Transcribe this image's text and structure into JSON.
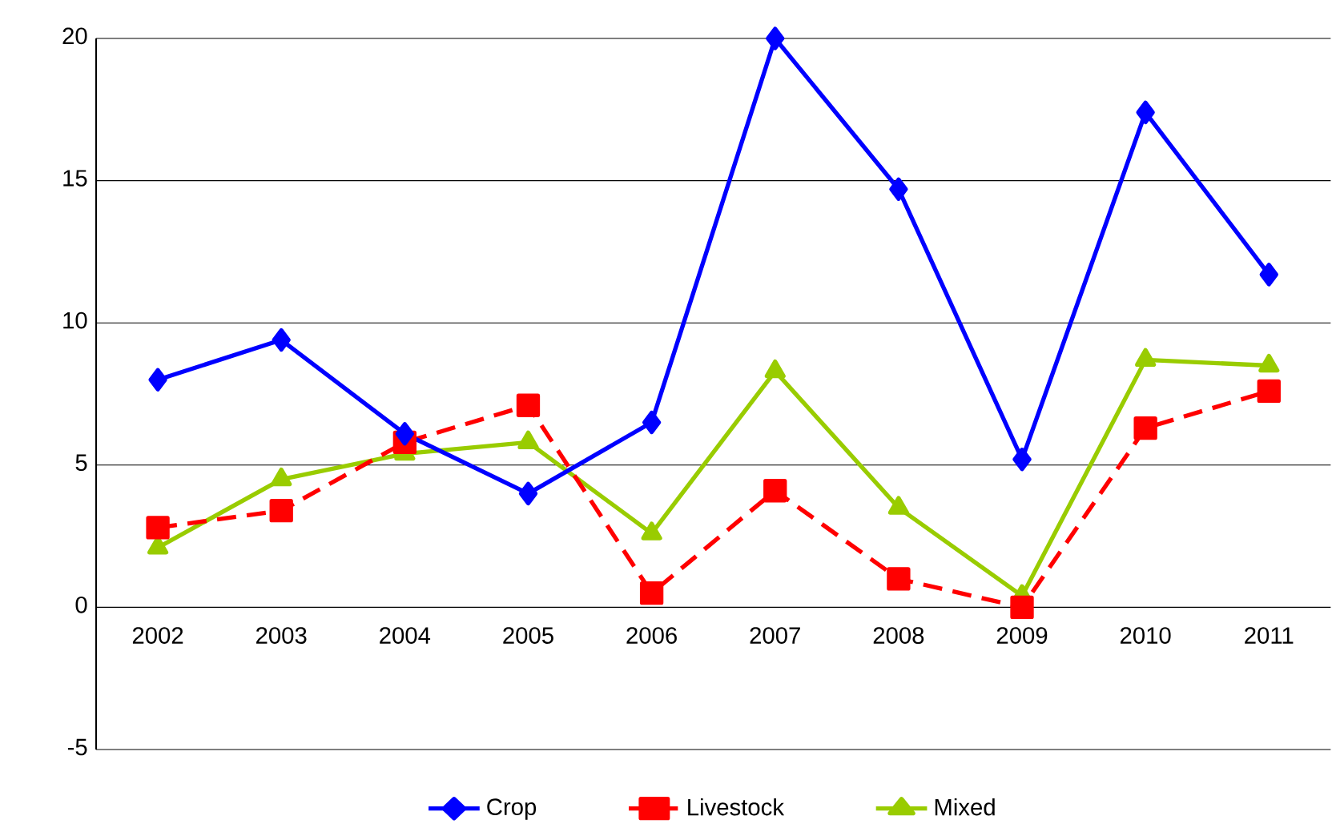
{
  "chart_data": {
    "type": "line",
    "categories": [
      "2002",
      "2003",
      "2004",
      "2005",
      "2006",
      "2007",
      "2008",
      "2009",
      "2010",
      "2011"
    ],
    "series": [
      {
        "name": "Crop",
        "color": "#0000ff",
        "marker": "diamond",
        "line_style": "solid",
        "values": [
          8.0,
          9.4,
          6.1,
          4.0,
          6.5,
          20.0,
          14.7,
          5.2,
          17.4,
          11.7
        ]
      },
      {
        "name": "Livestock",
        "color": "#ff0000",
        "marker": "square",
        "line_style": "dashed",
        "values": [
          2.8,
          3.4,
          5.8,
          7.1,
          0.5,
          4.1,
          1.0,
          0.0,
          6.3,
          7.6
        ]
      },
      {
        "name": "Mixed",
        "color": "#99cc00",
        "marker": "triangle",
        "line_style": "solid",
        "values": [
          2.1,
          4.5,
          5.4,
          5.8,
          2.6,
          8.3,
          3.5,
          0.4,
          8.7,
          8.5
        ]
      }
    ],
    "ylim": [
      -5,
      20
    ],
    "yticks": [
      -5,
      0,
      5,
      10,
      15,
      20
    ],
    "grid": "y",
    "legend": "bottom"
  }
}
